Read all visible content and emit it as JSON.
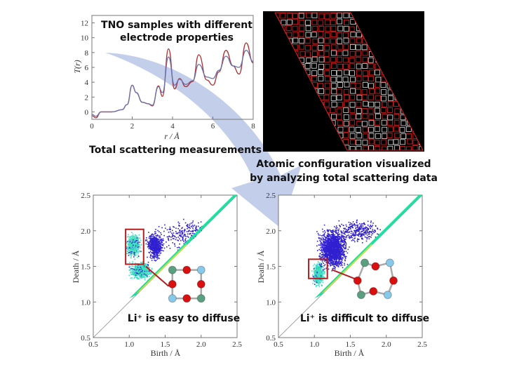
{
  "top_plot": {
    "title_line1": "TNO samples with different",
    "title_line2": "electrode properties",
    "caption": "Total scattering measurements",
    "xlabel": "r / Å",
    "ylabel": "T(r)",
    "xlim": [
      0,
      8
    ],
    "ylim": [
      -1,
      13
    ],
    "xticks": [
      "0",
      "2",
      "4",
      "6",
      "8"
    ],
    "yticks": [
      "0",
      "2",
      "4",
      "6",
      "8",
      "10",
      "12"
    ],
    "series": [
      {
        "color": "#b03030",
        "points": [
          [
            0,
            -0.5
          ],
          [
            0.2,
            -0.8
          ],
          [
            0.45,
            0
          ],
          [
            1,
            0
          ],
          [
            1.5,
            0.3
          ],
          [
            1.75,
            1
          ],
          [
            2,
            3.6
          ],
          [
            2.2,
            2.6
          ],
          [
            2.5,
            1.3
          ],
          [
            2.8,
            1.1
          ],
          [
            3,
            0.8
          ],
          [
            3.3,
            3.5
          ],
          [
            3.5,
            2.1
          ],
          [
            3.8,
            8.5
          ],
          [
            4.1,
            3.1
          ],
          [
            4.35,
            4.5
          ],
          [
            4.65,
            3.4
          ],
          [
            5,
            4.1
          ],
          [
            5.3,
            7.7
          ],
          [
            5.7,
            4.3
          ],
          [
            6,
            3.6
          ],
          [
            6.3,
            5.4
          ],
          [
            6.65,
            8.3
          ],
          [
            7,
            6.2
          ],
          [
            7.3,
            5.1
          ],
          [
            7.65,
            9.3
          ],
          [
            8,
            6.6
          ]
        ]
      },
      {
        "color": "#6a70b0",
        "points": [
          [
            0,
            -0.3
          ],
          [
            0.2,
            -0.6
          ],
          [
            0.45,
            0
          ],
          [
            1,
            0
          ],
          [
            1.5,
            0.3
          ],
          [
            1.75,
            1
          ],
          [
            2,
            3.6
          ],
          [
            2.2,
            2.6
          ],
          [
            2.5,
            1.3
          ],
          [
            2.8,
            1.1
          ],
          [
            3,
            0.9
          ],
          [
            3.3,
            3.4
          ],
          [
            3.5,
            2.6
          ],
          [
            3.8,
            7.4
          ],
          [
            4.1,
            3.6
          ],
          [
            4.35,
            4.4
          ],
          [
            4.65,
            3.7
          ],
          [
            5,
            4.2
          ],
          [
            5.3,
            6.4
          ],
          [
            5.7,
            4.7
          ],
          [
            6,
            4.5
          ],
          [
            6.3,
            5.6
          ],
          [
            6.65,
            7.5
          ],
          [
            7,
            6.2
          ],
          [
            7.3,
            6.0
          ],
          [
            7.65,
            8.3
          ],
          [
            8,
            6.8
          ]
        ]
      }
    ]
  },
  "atomic_panel": {
    "caption_line1": "Atomic configuration visualized",
    "caption_line2": "by analyzing total scattering data"
  },
  "bottom_left": {
    "label": "Li⁺ is easy to diffuse",
    "xlabel": "Birth / Å",
    "ylabel": "Death / Å",
    "xticks": [
      "0.5",
      "1.0",
      "1.5",
      "2.0",
      "2.5"
    ],
    "yticks": [
      "0.5",
      "1.0",
      "1.5",
      "2.0",
      "2.5"
    ],
    "range": [
      0.5,
      2.5
    ]
  },
  "bottom_right": {
    "label": "Li⁺ is difficult to diffuse",
    "xlabel": "Birth / Å",
    "ylabel": "Death / Å",
    "xticks": [
      "0.5",
      "1.0",
      "1.5",
      "2.0",
      "2.5"
    ],
    "yticks": [
      "0.5",
      "1.0",
      "1.5",
      "2.0",
      "2.5"
    ],
    "range": [
      0.5,
      2.5
    ]
  },
  "colors": {
    "arrow": "#b8c6e6",
    "highlight_box": "#b02020",
    "atom_o": "#d81010",
    "atom_a": "#5aa080",
    "atom_b": "#88c8e8"
  }
}
